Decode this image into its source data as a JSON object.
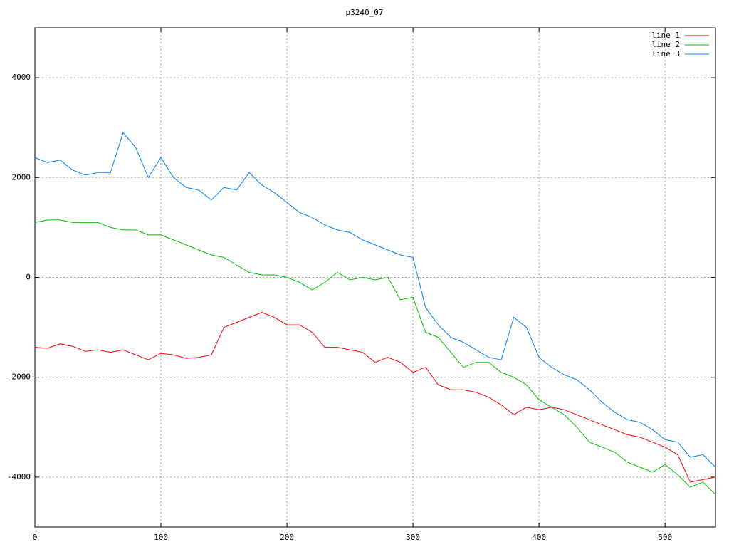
{
  "chart_data": {
    "type": "line",
    "title": "p3240_07",
    "x": [
      0,
      10,
      20,
      30,
      40,
      50,
      60,
      70,
      80,
      90,
      100,
      110,
      120,
      130,
      140,
      150,
      160,
      170,
      180,
      190,
      200,
      210,
      220,
      230,
      240,
      250,
      260,
      270,
      280,
      290,
      300,
      310,
      320,
      330,
      340,
      350,
      360,
      370,
      380,
      390,
      400,
      410,
      420,
      430,
      440,
      450,
      460,
      470,
      480,
      490,
      500,
      510,
      520,
      530,
      540
    ],
    "series": [
      {
        "name": "line 1",
        "color": "#ff0000",
        "values": [
          -1400,
          -1420,
          -1330,
          -1380,
          -1480,
          -1450,
          -1500,
          -1450,
          -1550,
          -1650,
          -1520,
          -1550,
          -1620,
          -1600,
          -1550,
          -1000,
          -900,
          -800,
          -700,
          -800,
          -950,
          -950,
          -1100,
          -1400,
          -1400,
          -1450,
          -1500,
          -1700,
          -1600,
          -1700,
          -1900,
          -1800,
          -2150,
          -2250,
          -2250,
          -2300,
          -2400,
          -2550,
          -2750,
          -2600,
          -2650,
          -2600,
          -2650,
          -2750,
          -2850,
          -2950,
          -3050,
          -3150,
          -3200,
          -3300,
          -3400,
          -3550,
          -4100,
          -4050,
          -4000
        ]
      },
      {
        "name": "line 2",
        "color": "#00c000",
        "values": [
          1100,
          1150,
          1150,
          1100,
          1100,
          1100,
          1000,
          950,
          950,
          850,
          850,
          750,
          650,
          550,
          450,
          400,
          250,
          100,
          50,
          50,
          0,
          -100,
          -250,
          -100,
          100,
          -50,
          0,
          -50,
          0,
          -450,
          -400,
          -1100,
          -1200,
          -1500,
          -1800,
          -1700,
          -1700,
          -1900,
          -2000,
          -2150,
          -2450,
          -2600,
          -2750,
          -3000,
          -3300,
          -3400,
          -3500,
          -3700,
          -3800,
          -3900,
          -3750,
          -3950,
          -4200,
          -4100,
          -4350
        ]
      },
      {
        "name": "line 3",
        "color": "#0080ff",
        "values": [
          2400,
          2300,
          2350,
          2150,
          2050,
          2100,
          2100,
          2900,
          2600,
          2000,
          2400,
          2000,
          1800,
          1750,
          1550,
          1800,
          1750,
          2100,
          1850,
          1700,
          1500,
          1300,
          1200,
          1050,
          950,
          900,
          750,
          650,
          550,
          450,
          400,
          -600,
          -950,
          -1200,
          -1300,
          -1450,
          -1600,
          -1650,
          -800,
          -1000,
          -1600,
          -1800,
          -1950,
          -2050,
          -2250,
          -2500,
          -2700,
          -2850,
          -2900,
          -3050,
          -3250,
          -3300,
          -3600,
          -3550,
          -3800
        ]
      }
    ],
    "xlim": [
      0,
      540
    ],
    "ylim": [
      -5000,
      5000
    ],
    "xticks": [
      0,
      100,
      200,
      300,
      400,
      500
    ],
    "yticks": [
      -4000,
      -2000,
      0,
      2000,
      4000
    ],
    "grid": true,
    "legend": "top-right"
  }
}
